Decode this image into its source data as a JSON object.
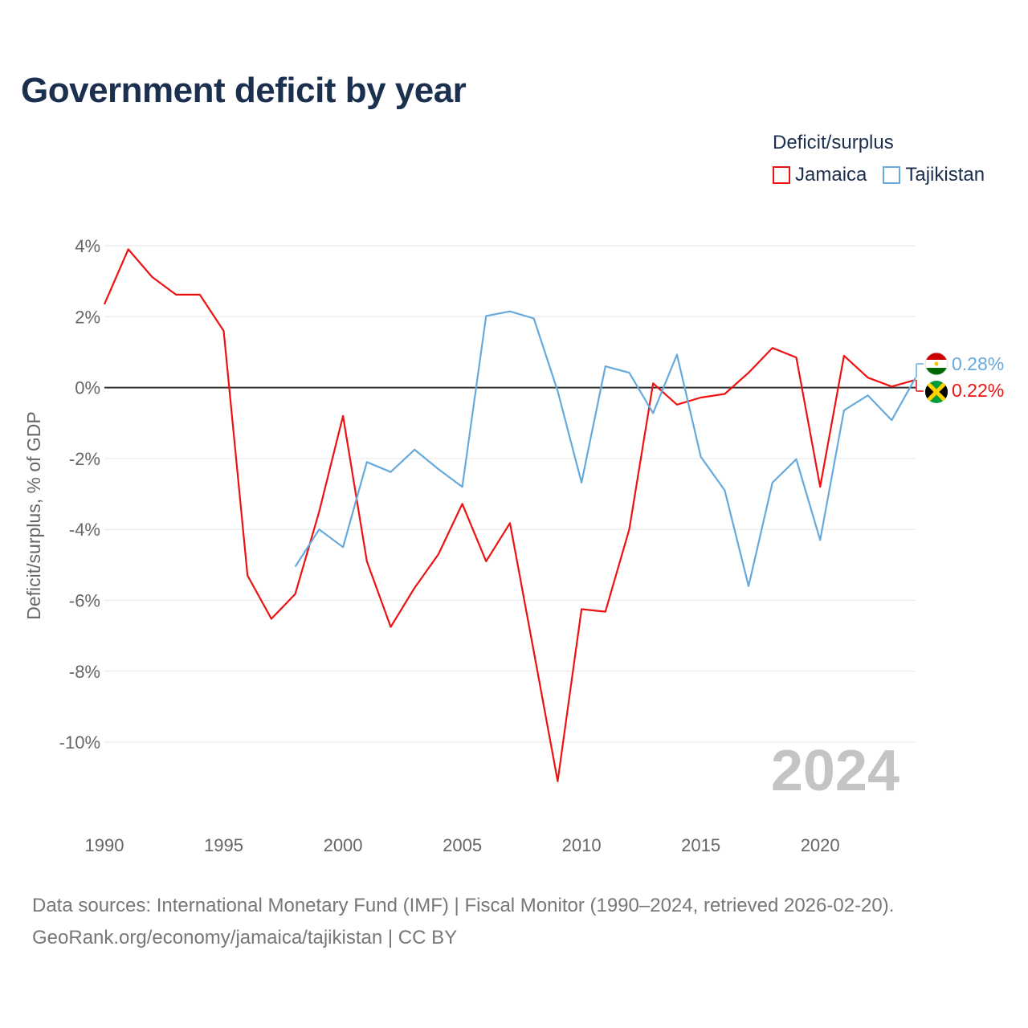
{
  "title": "Government deficit by year",
  "legend": {
    "title": "Deficit/surplus",
    "items": [
      {
        "label": "Jamaica",
        "color": "#ee1111"
      },
      {
        "label": "Tajikistan",
        "color": "#66aadd"
      }
    ]
  },
  "footer": {
    "line1": "Data sources: International Monetary Fund (IMF) | Fiscal Monitor (1990–2024, retrieved 2026-02-20).",
    "line2": "GeoRank.org/economy/jamaica/tajikistan | CC BY"
  },
  "chart_data": {
    "type": "line",
    "ylabel": "Deficit/surplus, % of GDP",
    "xlabel": "",
    "xlim": [
      1990,
      2024
    ],
    "ylim": [
      -12,
      4.5
    ],
    "x_ticks": [
      1990,
      1995,
      2000,
      2005,
      2010,
      2015,
      2020
    ],
    "x_tick_labels": [
      "1990",
      "1995",
      "2000",
      "2005",
      "2010",
      "2015",
      "2020"
    ],
    "y_ticks": [
      4,
      2,
      0,
      -2,
      -4,
      -6,
      -8,
      -10
    ],
    "y_tick_labels": [
      "4%",
      "2%",
      "0%",
      "-2%",
      "-4%",
      "-6%",
      "-8%",
      "-10%"
    ],
    "watermark_year": "2024",
    "series": [
      {
        "name": "Jamaica",
        "color": "#ee1111",
        "end_label": "0.22%",
        "points": [
          [
            1990,
            2.35
          ],
          [
            1991,
            3.9
          ],
          [
            1992,
            3.12
          ],
          [
            1993,
            2.62
          ],
          [
            1994,
            2.62
          ],
          [
            1995,
            1.6
          ],
          [
            1996,
            -5.3
          ],
          [
            1997,
            -6.52
          ],
          [
            1998,
            -5.82
          ],
          [
            1999,
            -3.5
          ],
          [
            2000,
            -0.8
          ],
          [
            2001,
            -4.9
          ],
          [
            2002,
            -6.75
          ],
          [
            2003,
            -5.65
          ],
          [
            2004,
            -4.7
          ],
          [
            2005,
            -3.28
          ],
          [
            2006,
            -4.9
          ],
          [
            2007,
            -3.82
          ],
          [
            2008,
            -7.45
          ],
          [
            2009,
            -11.1
          ],
          [
            2010,
            -6.25
          ],
          [
            2011,
            -6.32
          ],
          [
            2012,
            -4.0
          ],
          [
            2013,
            0.12
          ],
          [
            2014,
            -0.48
          ],
          [
            2015,
            -0.28
          ],
          [
            2016,
            -0.18
          ],
          [
            2017,
            0.42
          ],
          [
            2018,
            1.12
          ],
          [
            2019,
            0.85
          ],
          [
            2020,
            -2.8
          ],
          [
            2021,
            0.9
          ],
          [
            2022,
            0.28
          ],
          [
            2023,
            0.03
          ],
          [
            2024,
            0.22
          ]
        ]
      },
      {
        "name": "Tajikistan",
        "color": "#66aadd",
        "end_label": "0.28%",
        "points": [
          [
            1998,
            -5.05
          ],
          [
            1999,
            -4.0
          ],
          [
            2000,
            -4.5
          ],
          [
            2001,
            -2.1
          ],
          [
            2002,
            -2.38
          ],
          [
            2003,
            -1.75
          ],
          [
            2004,
            -2.3
          ],
          [
            2005,
            -2.8
          ],
          [
            2006,
            2.02
          ],
          [
            2007,
            2.15
          ],
          [
            2008,
            1.95
          ],
          [
            2009,
            -0.1
          ],
          [
            2010,
            -2.68
          ],
          [
            2011,
            0.6
          ],
          [
            2012,
            0.42
          ],
          [
            2013,
            -0.72
          ],
          [
            2014,
            0.93
          ],
          [
            2015,
            -1.95
          ],
          [
            2016,
            -2.9
          ],
          [
            2017,
            -5.6
          ],
          [
            2018,
            -2.68
          ],
          [
            2019,
            -2.02
          ],
          [
            2020,
            -4.3
          ],
          [
            2021,
            -0.64
          ],
          [
            2022,
            -0.22
          ],
          [
            2023,
            -0.92
          ],
          [
            2024,
            0.28
          ]
        ]
      }
    ]
  }
}
